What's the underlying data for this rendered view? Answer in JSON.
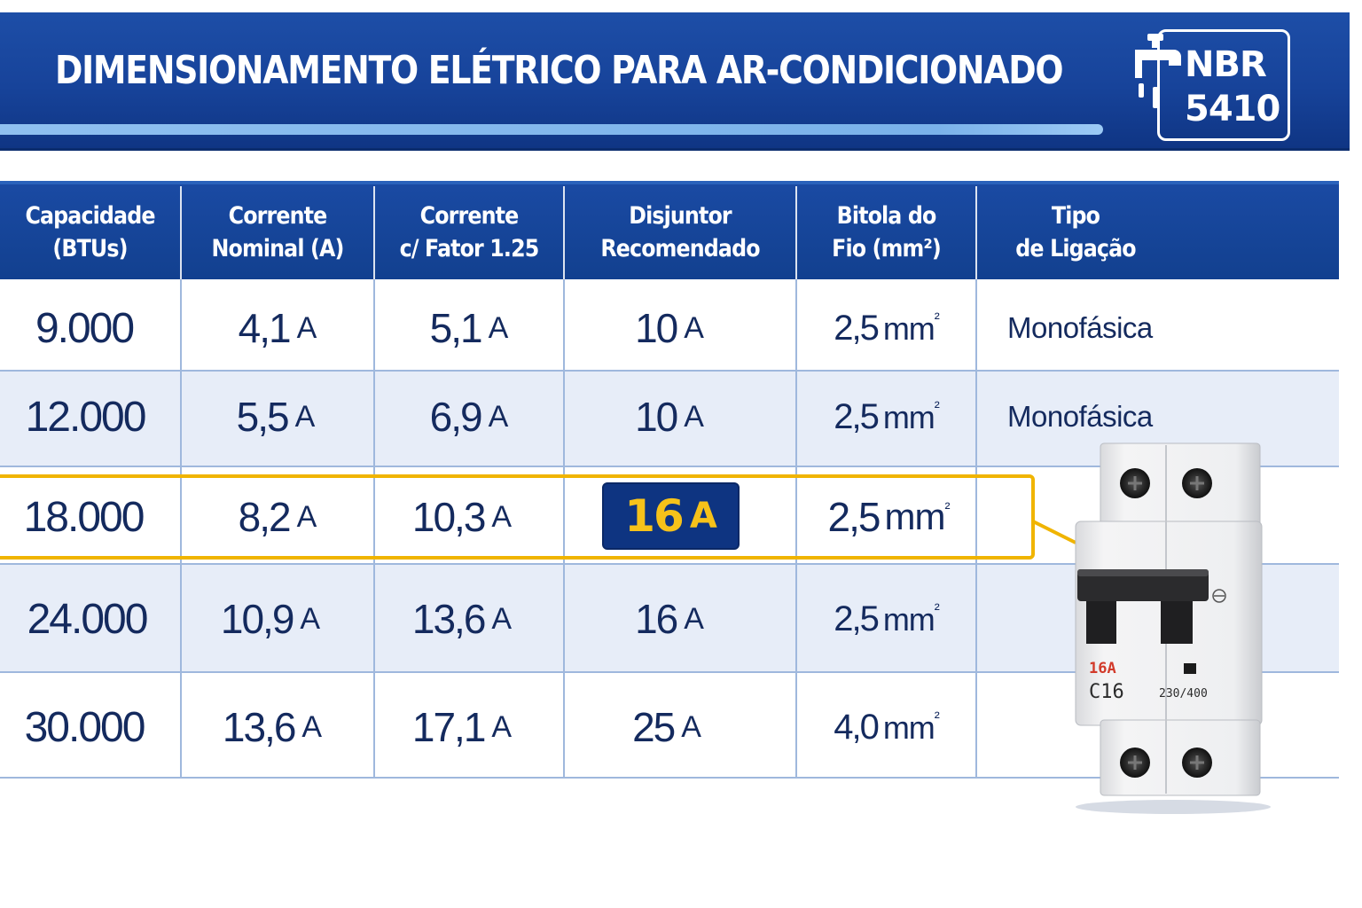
{
  "header": {
    "title": "DIMENSIONAMENTO ELÉTRICO PARA AR-CONDICIONADO",
    "badge_line1": "NBR",
    "badge_line2": "5410"
  },
  "table": {
    "columns": [
      [
        "Capacidade",
        "(BTUs)"
      ],
      [
        "Corrente",
        "Nominal (A)"
      ],
      [
        "Corrente",
        "c/ Fator 1.25"
      ],
      [
        "Disjuntor",
        "Recomendado"
      ],
      [
        "Bitola do",
        "Fio (mm²)"
      ],
      [
        "Tipo",
        "de Ligação"
      ]
    ],
    "rows": [
      {
        "btu": "9.000",
        "nominal": "4,1",
        "fator": "5,1",
        "disjuntor": "10",
        "bitola": "2,5",
        "tipo": "Monofásica"
      },
      {
        "btu": "12.000",
        "nominal": "5,5",
        "fator": "6,9",
        "disjuntor": "10",
        "bitola": "2,5",
        "tipo": "Monofásica"
      },
      {
        "btu": "18.000",
        "nominal": "8,2",
        "fator": "10,3",
        "disjuntor": "16",
        "bitola": "2,5",
        "tipo": "",
        "highlighted": true
      },
      {
        "btu": "24.000",
        "nominal": "10,9",
        "fator": "13,6",
        "disjuntor": "16",
        "bitola": "2,5",
        "tipo": ""
      },
      {
        "btu": "30.000",
        "nominal": "13,6",
        "fator": "17,1",
        "disjuntor": "25",
        "bitola": "4,0",
        "tipo": ""
      }
    ],
    "unit_amp": "A",
    "unit_mm": "mm",
    "unit_sup": "²"
  },
  "breaker_image": {
    "rating_red": "16A",
    "model": "C16",
    "voltage": "230/400"
  },
  "colors": {
    "header_blue": "#17439a",
    "highlight_gold": "#f0b400",
    "chip_text": "#f6c21a",
    "row_tint": "#e7edf8"
  }
}
